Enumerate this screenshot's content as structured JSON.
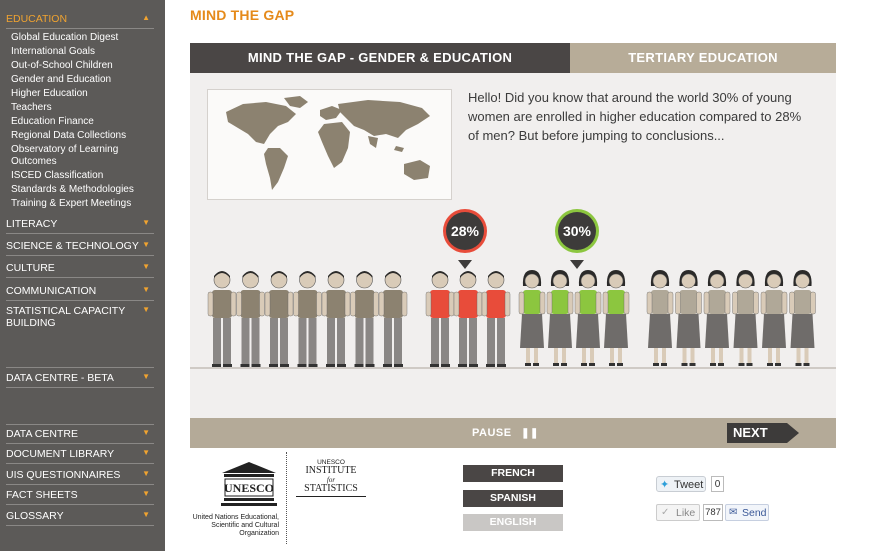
{
  "sidebar": {
    "active_section": "EDUCATION",
    "sub_items": [
      "Global Education Digest",
      "International Goals",
      "Out-of-School Children",
      "Gender and Education",
      "Higher Education",
      "Teachers",
      "Education Finance",
      "Regional Data Collections",
      "Observatory of Learning Outcomes",
      "ISCED Classification",
      "Standards & Methodologies",
      "Training & Expert Meetings"
    ],
    "sections": [
      "LITERACY",
      "SCIENCE & TECHNOLOGY",
      "CULTURE",
      "COMMUNICATION",
      "STATISTICAL CAPACITY BUILDING",
      "DATA CENTRE - BETA",
      "DATA CENTRE",
      "DOCUMENT LIBRARY",
      "UIS QUESTIONNAIRES",
      "FACT SHEETS",
      "GLOSSARY"
    ]
  },
  "page_title": "MIND THE GAP",
  "infographic": {
    "tab_active": "MIND THE GAP - GENDER & EDUCATION",
    "tab_inactive": "TERTIARY EDUCATION",
    "intro_text": "Hello! Did you know that around the world 30% of young women are enrolled in higher education compared to 28% of men? But before jumping to conclusions...",
    "men_percent": "28%",
    "women_percent": "30%",
    "pause_label": "PAUSE",
    "next_label": "NEXT",
    "colors": {
      "men_enrolled": "#e84c3a",
      "women_enrolled": "#8cc63f",
      "men_other": "#8c8270",
      "women_other": "#b0a898",
      "dark": "#3d3b3a",
      "tab_inactive": "#b7ac98"
    }
  },
  "footer": {
    "unesco_wordmark": "UNESCO",
    "unesco_caption": "United Nations Educational, Scientific and Cultural Organization",
    "uis_small": "UNESCO",
    "uis_line1": "INSTITUTE",
    "uis_line2": "for",
    "uis_line3": "STATISTICS",
    "languages": [
      "FRENCH",
      "SPANISH",
      "ENGLISH"
    ],
    "tweet_label": "Tweet",
    "tweet_count": "0",
    "like_label": "Like",
    "like_count": "787",
    "send_label": "Send"
  }
}
